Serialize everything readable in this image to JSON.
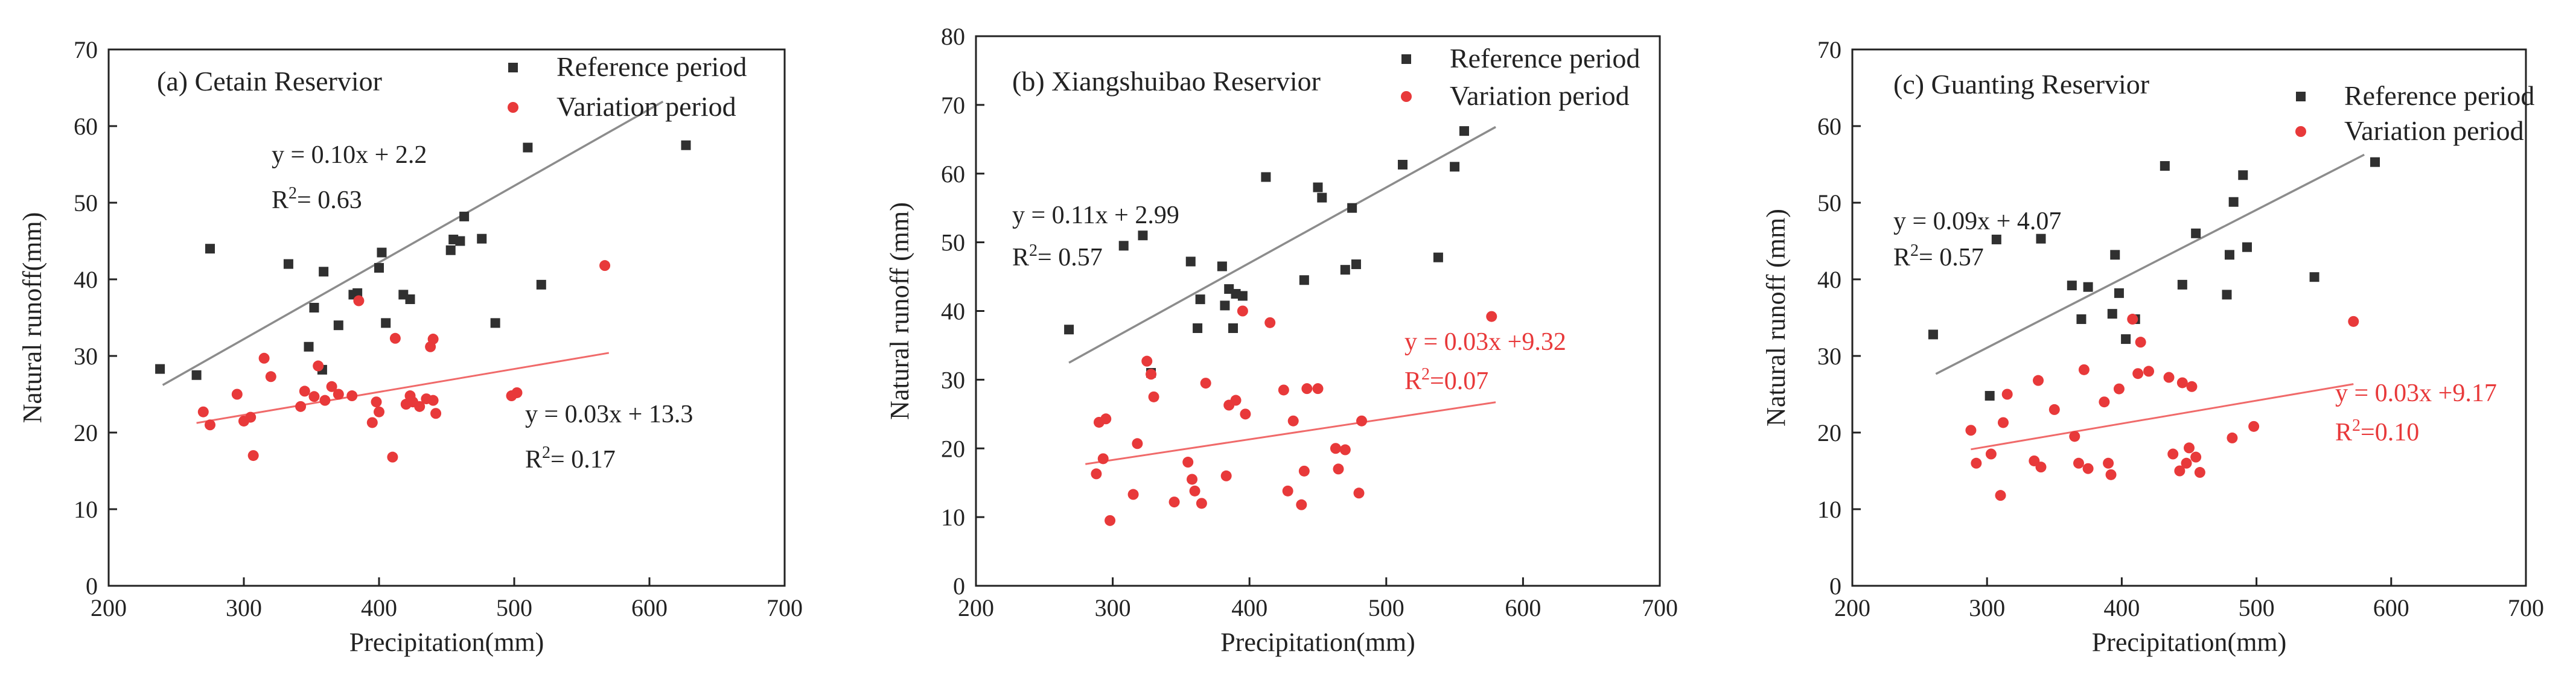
{
  "figure_colors": {
    "reference": "#303030",
    "variation": "#e8393a",
    "reference_line": "#8c8c8c",
    "variation_line": "#f06a6a"
  },
  "legend": {
    "reference_label": "Reference period",
    "variation_label": "Variation period"
  },
  "chart_data": [
    {
      "type": "scatter",
      "title": "(a) Cetain Reservior",
      "xlabel": "Precipitation(mm)",
      "ylabel": "Natural runoff(mm)",
      "xlim": [
        200,
        700
      ],
      "ylim": [
        0,
        70
      ],
      "xticks": [
        200,
        300,
        400,
        500,
        600,
        700
      ],
      "yticks": [
        0,
        10,
        20,
        30,
        40,
        50,
        60,
        70
      ],
      "reference": {
        "name": "Reference period",
        "points": [
          [
            238,
            28.3
          ],
          [
            265,
            27.5
          ],
          [
            275,
            44
          ],
          [
            333,
            42
          ],
          [
            348,
            31.2
          ],
          [
            352,
            36.3
          ],
          [
            358,
            28.2
          ],
          [
            359,
            41
          ],
          [
            370,
            34
          ],
          [
            381,
            38
          ],
          [
            384,
            38.2
          ],
          [
            400,
            41.5
          ],
          [
            402,
            43.5
          ],
          [
            405,
            34.3
          ],
          [
            418,
            38
          ],
          [
            423,
            37.4
          ],
          [
            453,
            43.8
          ],
          [
            455,
            45.2
          ],
          [
            460,
            45
          ],
          [
            463,
            48.2
          ],
          [
            476,
            45.3
          ],
          [
            486,
            34.3
          ],
          [
            510,
            57.2
          ],
          [
            520,
            39.3
          ],
          [
            627,
            57.5
          ]
        ],
        "fit": {
          "slope": 0.1,
          "intercept": 2.2,
          "x_range": [
            240,
            610
          ]
        },
        "equation": "y = 0.10x + 2.2",
        "r2_prefix": "R",
        "r2_value": "= 0.63"
      },
      "variation": {
        "name": "Variation period",
        "points": [
          [
            270,
            22.7
          ],
          [
            275,
            21
          ],
          [
            295,
            25
          ],
          [
            300,
            21.5
          ],
          [
            305,
            22
          ],
          [
            307,
            17
          ],
          [
            315,
            29.7
          ],
          [
            320,
            27.3
          ],
          [
            342,
            23.4
          ],
          [
            345,
            25.4
          ],
          [
            352,
            24.7
          ],
          [
            355,
            28.7
          ],
          [
            360,
            24.2
          ],
          [
            365,
            26
          ],
          [
            370,
            25
          ],
          [
            380,
            24.8
          ],
          [
            385,
            37.2
          ],
          [
            395,
            21.3
          ],
          [
            398,
            24
          ],
          [
            400,
            22.7
          ],
          [
            410,
            16.8
          ],
          [
            412,
            32.3
          ],
          [
            420,
            23.7
          ],
          [
            423,
            24.8
          ],
          [
            425,
            24
          ],
          [
            430,
            23.4
          ],
          [
            435,
            24.4
          ],
          [
            438,
            31.2
          ],
          [
            440,
            32.2
          ],
          [
            440,
            24.2
          ],
          [
            442,
            22.5
          ],
          [
            498,
            24.8
          ],
          [
            502,
            25.2
          ],
          [
            567,
            41.8
          ]
        ],
        "fit": {
          "slope": 0.03,
          "intercept": 13.3,
          "x_range": [
            265,
            570
          ]
        },
        "equation": "y = 0.03x + 13.3",
        "r2_prefix": "R",
        "r2_value": "= 0.17"
      }
    },
    {
      "type": "scatter",
      "title": "(b) Xiangshuibao Reservior",
      "xlabel": "Precipitation(mm)",
      "ylabel": "Natural runoff (mm)",
      "xlim": [
        200,
        700
      ],
      "ylim": [
        0,
        80
      ],
      "xticks": [
        200,
        300,
        400,
        500,
        600,
        700
      ],
      "yticks": [
        0,
        10,
        20,
        30,
        40,
        50,
        60,
        70,
        80
      ],
      "reference": {
        "name": "Reference period",
        "points": [
          [
            268,
            37.3
          ],
          [
            308,
            49.5
          ],
          [
            322,
            51
          ],
          [
            328,
            31
          ],
          [
            357,
            47.2
          ],
          [
            362,
            37.5
          ],
          [
            364,
            41.7
          ],
          [
            380,
            46.5
          ],
          [
            382,
            40.8
          ],
          [
            385,
            43.2
          ],
          [
            388,
            37.5
          ],
          [
            390,
            42.5
          ],
          [
            395,
            42.2
          ],
          [
            412,
            59.5
          ],
          [
            440,
            44.5
          ],
          [
            450,
            58
          ],
          [
            453,
            56.5
          ],
          [
            470,
            46
          ],
          [
            475,
            55
          ],
          [
            478,
            46.8
          ],
          [
            512,
            61.3
          ],
          [
            538,
            47.8
          ],
          [
            550,
            61
          ],
          [
            557,
            66.2
          ]
        ],
        "fit": {
          "slope": 0.11,
          "intercept": 2.99,
          "x_range": [
            268,
            580
          ]
        },
        "equation": "y = 0.11x + 2.99",
        "r2_prefix": "R",
        "r2_value": "= 0.57"
      },
      "variation": {
        "name": "Variation period",
        "points": [
          [
            288,
            16.3
          ],
          [
            290,
            23.8
          ],
          [
            293,
            18.5
          ],
          [
            295,
            24.3
          ],
          [
            298,
            9.5
          ],
          [
            315,
            13.3
          ],
          [
            318,
            20.7
          ],
          [
            325,
            32.7
          ],
          [
            328,
            30.8
          ],
          [
            330,
            27.5
          ],
          [
            345,
            12.2
          ],
          [
            355,
            18
          ],
          [
            358,
            15.5
          ],
          [
            360,
            13.8
          ],
          [
            365,
            12
          ],
          [
            368,
            29.5
          ],
          [
            383,
            16
          ],
          [
            385,
            26.3
          ],
          [
            390,
            27
          ],
          [
            395,
            40
          ],
          [
            397,
            25
          ],
          [
            415,
            38.3
          ],
          [
            425,
            28.5
          ],
          [
            428,
            13.8
          ],
          [
            432,
            24
          ],
          [
            438,
            11.8
          ],
          [
            440,
            16.7
          ],
          [
            442,
            28.7
          ],
          [
            450,
            28.7
          ],
          [
            463,
            20
          ],
          [
            465,
            17
          ],
          [
            470,
            19.8
          ],
          [
            480,
            13.5
          ],
          [
            482,
            24
          ],
          [
            577,
            39.2
          ]
        ],
        "fit": {
          "slope": 0.03,
          "intercept": 9.32,
          "x_range": [
            280,
            580
          ]
        },
        "equation": "y = 0.03x +9.32",
        "r2_prefix": "R",
        "r2_value": "=0.07"
      }
    },
    {
      "type": "scatter",
      "title": "(c) Guanting Reservior",
      "xlabel": "Precipitation(mm)",
      "ylabel": "Natural runoff (mm)",
      "xlim": [
        200,
        700
      ],
      "ylim": [
        0,
        70
      ],
      "xticks": [
        200,
        300,
        400,
        500,
        600,
        700
      ],
      "yticks": [
        0,
        10,
        20,
        30,
        40,
        50,
        60,
        70
      ],
      "reference": {
        "name": "Reference period",
        "points": [
          [
            260,
            32.8
          ],
          [
            302,
            24.8
          ],
          [
            307,
            45.2
          ],
          [
            340,
            45.3
          ],
          [
            363,
            39.2
          ],
          [
            370,
            34.8
          ],
          [
            375,
            39
          ],
          [
            393,
            35.5
          ],
          [
            395,
            43.2
          ],
          [
            398,
            38.2
          ],
          [
            403,
            32.2
          ],
          [
            410,
            34.8
          ],
          [
            432,
            54.8
          ],
          [
            445,
            39.3
          ],
          [
            455,
            46
          ],
          [
            478,
            38
          ],
          [
            480,
            43.2
          ],
          [
            483,
            50.1
          ],
          [
            490,
            53.6
          ],
          [
            493,
            44.2
          ],
          [
            543,
            40.3
          ],
          [
            588,
            55.3
          ]
        ],
        "fit": {
          "slope": 0.09,
          "intercept": 4.07,
          "x_range": [
            262,
            580
          ]
        },
        "equation": "y = 0.09x + 4.07",
        "r2_prefix": "R",
        "r2_value": "= 0.57"
      },
      "variation": {
        "name": "Variation period",
        "points": [
          [
            288,
            20.3
          ],
          [
            292,
            16
          ],
          [
            303,
            17.2
          ],
          [
            310,
            11.8
          ],
          [
            312,
            21.3
          ],
          [
            315,
            25
          ],
          [
            335,
            16.3
          ],
          [
            338,
            26.8
          ],
          [
            340,
            15.5
          ],
          [
            350,
            23
          ],
          [
            365,
            19.5
          ],
          [
            368,
            16
          ],
          [
            372,
            28.2
          ],
          [
            375,
            15.3
          ],
          [
            387,
            24
          ],
          [
            390,
            16
          ],
          [
            392,
            14.5
          ],
          [
            398,
            25.7
          ],
          [
            408,
            34.8
          ],
          [
            412,
            27.7
          ],
          [
            414,
            31.8
          ],
          [
            420,
            28
          ],
          [
            435,
            27.2
          ],
          [
            438,
            17.2
          ],
          [
            443,
            15
          ],
          [
            445,
            26.5
          ],
          [
            448,
            16
          ],
          [
            450,
            18
          ],
          [
            452,
            26
          ],
          [
            455,
            16.8
          ],
          [
            458,
            14.8
          ],
          [
            482,
            19.3
          ],
          [
            498,
            20.8
          ],
          [
            572,
            34.5
          ]
        ],
        "fit": {
          "slope": 0.03,
          "intercept": 9.17,
          "x_range": [
            288,
            572
          ]
        },
        "equation": "y = 0.03x +9.17",
        "r2_prefix": "R",
        "r2_value": "=0.10"
      }
    }
  ]
}
